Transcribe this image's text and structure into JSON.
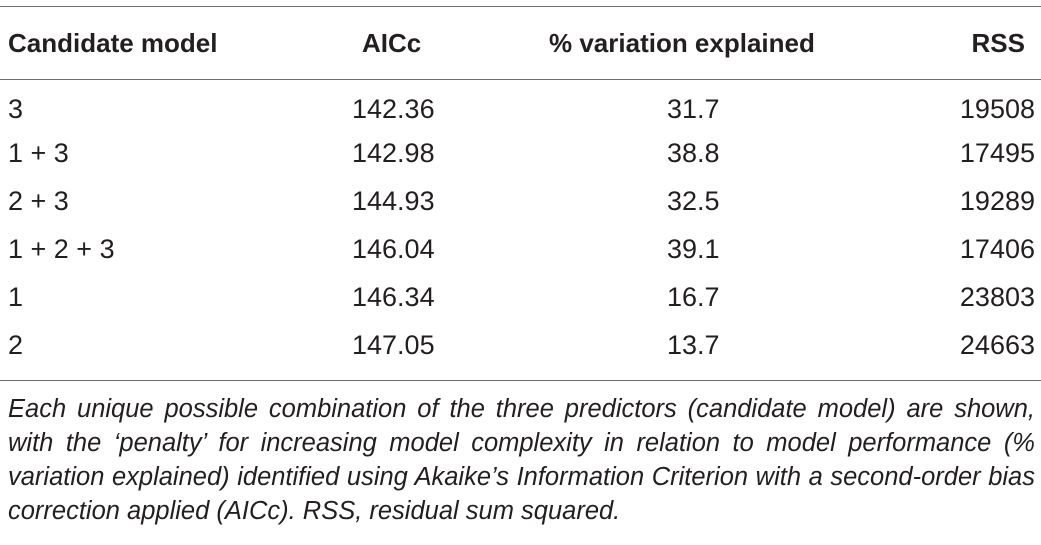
{
  "table": {
    "headers": {
      "model": "Candidate model",
      "aicc": "AICc",
      "variation": "% variation explained",
      "rss": "RSS"
    },
    "rows": [
      {
        "model": "3",
        "aicc": "142.36",
        "variation": "31.7",
        "rss": "19508"
      },
      {
        "model": "1 + 3",
        "aicc": "142.98",
        "variation": "38.8",
        "rss": "17495"
      },
      {
        "model": "2 + 3",
        "aicc": "144.93",
        "variation": "32.5",
        "rss": "19289"
      },
      {
        "model": "1 + 2 + 3",
        "aicc": "146.04",
        "variation": "39.1",
        "rss": "17406"
      },
      {
        "model": "1",
        "aicc": "146.34",
        "variation": "16.7",
        "rss": "23803"
      },
      {
        "model": "2",
        "aicc": "147.05",
        "variation": "13.7",
        "rss": "24663"
      }
    ]
  },
  "caption": "Each unique possible combination of the three predictors (candidate model) are shown, with the ‘penalty’ for increasing model complexity in relation to model performance (% variation explained) identified using Akaike’s Information Criterion with a second-order bias correction applied (AICc). RSS, residual sum squared."
}
